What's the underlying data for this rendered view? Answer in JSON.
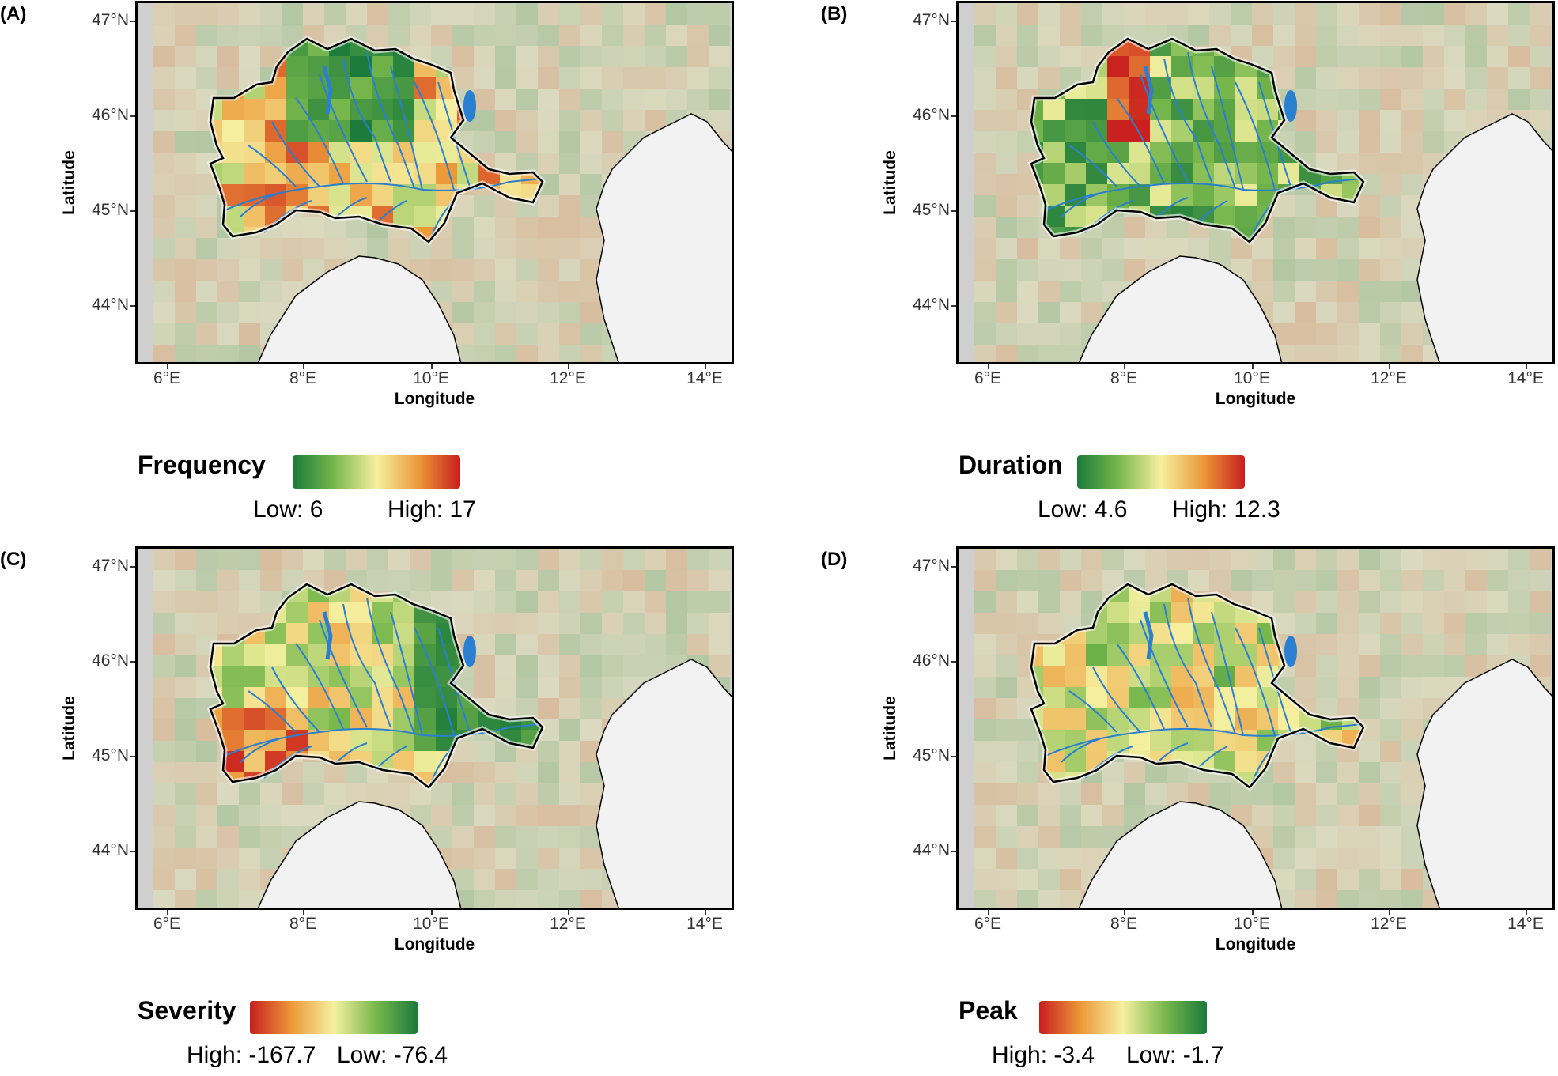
{
  "axes": {
    "x_title": "Longitude",
    "y_title": "Latitude",
    "x_ticks": [
      "6°E",
      "8°E",
      "10°E",
      "12°E",
      "14°E"
    ],
    "y_ticks": [
      "47°N",
      "46°N",
      "45°N",
      "44°N"
    ]
  },
  "colors": {
    "dark_green": "#1a7a3a",
    "mid_green": "#79b84c",
    "yellow": "#f5f0a0",
    "orange": "#ec9a3a",
    "red": "#c81e1e",
    "river": "#2b7fd0",
    "sea": "#f2f2f2",
    "frame_bg": "#cfcfcf"
  },
  "panels": [
    {
      "label": "(A)",
      "legend_title": "Frequency",
      "legend_low": "Low: 6",
      "legend_high": "High: 17",
      "gradient": "green-to-red"
    },
    {
      "label": "(B)",
      "legend_title": "Duration",
      "legend_low": "Low: 4.6",
      "legend_high": "High: 12.3",
      "gradient": "green-to-red"
    },
    {
      "label": "(C)",
      "legend_title": "Severity",
      "legend_low": "High: -167.7",
      "legend_high": "Low: -76.4",
      "gradient": "red-to-green"
    },
    {
      "label": "(D)",
      "legend_title": "Peak",
      "legend_low": "High: -3.4",
      "legend_high": "Low: -1.7",
      "gradient": "red-to-green"
    }
  ]
}
